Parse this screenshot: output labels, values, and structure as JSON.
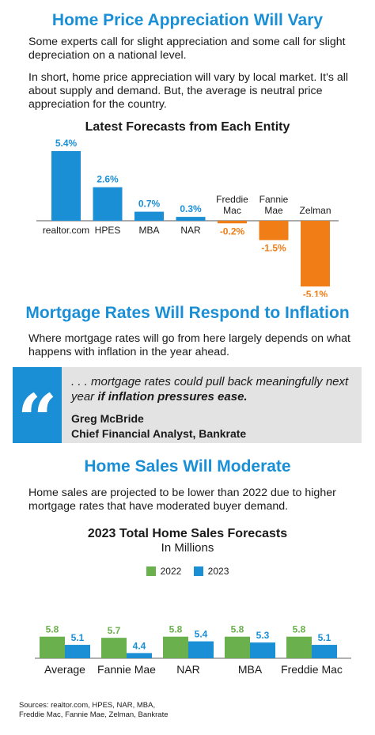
{
  "section1": {
    "title": "Home Price Appreciation Will Vary",
    "para1": "Some experts call for slight appreciation and some call for slight depreciation on a national level.",
    "para2": "In short, home price appreciation will vary by local market. It's all about supply and demand. But, the average is neutral price appreciation for the country."
  },
  "section2": {
    "title": "Mortgage Rates Will Respond to Inflation",
    "para": "Where mortgage rates will go from here largely depends on what happens with inflation in the year ahead.",
    "quote_mark": "“",
    "quote_text_part1": ". . . mortgage rates could pull back meaningfully next year ",
    "quote_text_bold": "if inflation pressures ease.",
    "quote_author": "Greg McBride",
    "quote_author_title": "Chief Financial Analyst, Bankrate"
  },
  "section3": {
    "title": "Home Sales Will Moderate",
    "para": "Home sales are projected to be lower than 2022 due to higher mortgage rates that have moderated buyer demand."
  },
  "sources": {
    "line1": "Sources: realtor.com, HPES, NAR, MBA,",
    "line2": "Freddie Mac, Fannie Mae, Zelman, Bankrate"
  },
  "colors": {
    "blue": "#1a8fd6",
    "orange": "#f07d16",
    "green": "#6ab04c",
    "quote_bg": "#e3e3e3"
  },
  "chart_data": [
    {
      "type": "bar",
      "title": "Latest Forecasts from Each Entity",
      "categories": [
        "realtor.com",
        "HPES",
        "MBA",
        "NAR",
        "Freddie Mac",
        "Fannie Mae",
        "Zelman"
      ],
      "values": [
        5.4,
        2.6,
        0.7,
        0.3,
        -0.2,
        -1.5,
        -5.1
      ],
      "value_labels": [
        "5.4%",
        "2.6%",
        "0.7%",
        "0.3%",
        "-0.2%",
        "-1.5%",
        "-5.1%"
      ],
      "positive_color": "#1a8fd6",
      "negative_color": "#f07d16",
      "ylim": [
        -5.1,
        5.4
      ],
      "grid": false
    },
    {
      "type": "bar",
      "title": "2023 Total Home Sales Forecasts",
      "subtitle": "In Millions",
      "categories": [
        "Average",
        "Fannie Mae",
        "NAR",
        "MBA",
        "Freddie Mac"
      ],
      "series": [
        {
          "name": "2022",
          "values": [
            5.8,
            5.7,
            5.8,
            5.8,
            5.8
          ],
          "color": "#6ab04c"
        },
        {
          "name": "2023",
          "values": [
            5.1,
            4.4,
            5.4,
            5.3,
            5.1
          ],
          "color": "#1a8fd6"
        }
      ],
      "ylim": [
        0,
        5.8
      ],
      "legend": "top-center",
      "grid": false
    }
  ]
}
